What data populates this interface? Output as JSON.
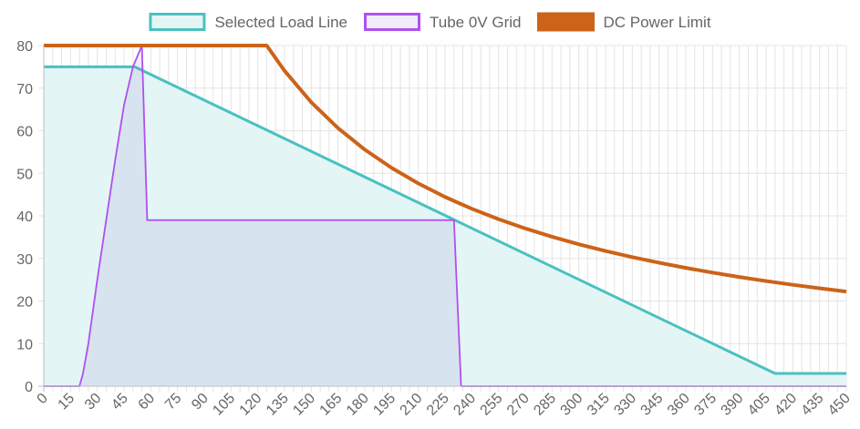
{
  "chart_data": {
    "type": "line",
    "xlim": [
      0,
      450
    ],
    "ylim": [
      0,
      80
    ],
    "x_ticks": [
      0,
      15,
      30,
      45,
      60,
      75,
      90,
      105,
      120,
      135,
      150,
      165,
      180,
      195,
      210,
      225,
      240,
      255,
      270,
      285,
      300,
      315,
      330,
      345,
      360,
      375,
      390,
      405,
      420,
      435,
      450
    ],
    "y_ticks": [
      0,
      10,
      20,
      30,
      40,
      50,
      60,
      70,
      80
    ],
    "x_minor_step": 5,
    "grid": true,
    "legend_position": "top-center",
    "series": [
      {
        "name": "Selected Load Line",
        "color": "#4bc0c0",
        "fill": "#e3f5f5",
        "filled": true,
        "line_width": 3,
        "points": [
          [
            0,
            75
          ],
          [
            51,
            75
          ],
          [
            410,
            3
          ],
          [
            450,
            3
          ]
        ]
      },
      {
        "name": "Tube 0V Grid",
        "color": "#b050ee",
        "fill": "rgba(150, 120, 210, 0.14)",
        "filled": true,
        "line_width": 1.8,
        "points": [
          [
            0,
            0
          ],
          [
            20,
            0
          ],
          [
            22,
            3
          ],
          [
            25,
            10
          ],
          [
            30,
            25
          ],
          [
            35,
            39
          ],
          [
            40,
            53
          ],
          [
            45,
            66
          ],
          [
            50,
            75
          ],
          [
            55,
            80
          ],
          [
            58,
            39
          ],
          [
            60,
            39
          ],
          [
            100,
            39
          ],
          [
            150,
            39
          ],
          [
            200,
            39
          ],
          [
            230,
            39
          ],
          [
            234,
            0
          ],
          [
            450,
            0
          ]
        ]
      },
      {
        "name": "DC Power Limit",
        "color": "#cc6319",
        "filled": false,
        "line_width": 4,
        "power_watts": 10,
        "points": [
          [
            0,
            80
          ],
          [
            125,
            80
          ],
          [
            135,
            74.07
          ],
          [
            150,
            66.67
          ],
          [
            165,
            60.61
          ],
          [
            180,
            55.56
          ],
          [
            195,
            51.28
          ],
          [
            210,
            47.62
          ],
          [
            225,
            44.44
          ],
          [
            240,
            41.67
          ],
          [
            255,
            39.22
          ],
          [
            270,
            37.04
          ],
          [
            285,
            35.09
          ],
          [
            300,
            33.33
          ],
          [
            315,
            31.75
          ],
          [
            330,
            30.3
          ],
          [
            345,
            28.99
          ],
          [
            360,
            27.78
          ],
          [
            375,
            26.67
          ],
          [
            390,
            25.64
          ],
          [
            405,
            24.69
          ],
          [
            420,
            23.81
          ],
          [
            435,
            22.99
          ],
          [
            450,
            22.22
          ]
        ]
      }
    ]
  }
}
